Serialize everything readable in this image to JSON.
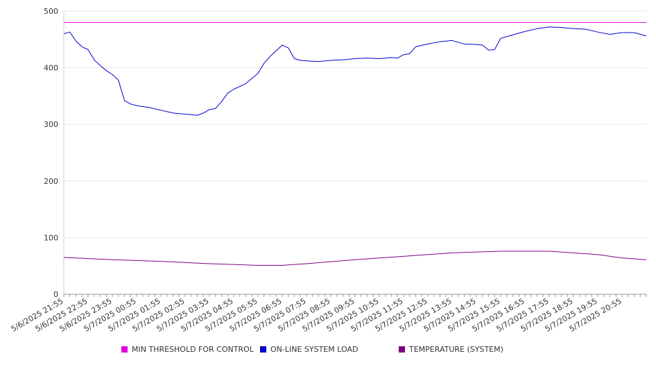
{
  "chart_data": {
    "type": "line",
    "title": "",
    "xlabel": "",
    "ylabel": "",
    "ylim": [
      0,
      500
    ],
    "y_ticks": [
      0,
      100,
      200,
      300,
      400,
      500
    ],
    "grid": "horizontal",
    "legend_position": "bottom",
    "x_tick_labels": [
      "5/6/2025 21:55",
      "5/6/2025 22:55",
      "5/6/2025 23:55",
      "5/7/2025 00:55",
      "5/7/2025 01:55",
      "5/7/2025 02:55",
      "5/7/2025 03:55",
      "5/7/2025 04:55",
      "5/7/2025 05:55",
      "5/7/2025 06:55",
      "5/7/2025 07:55",
      "5/7/2025 08:55",
      "5/7/2025 09:55",
      "5/7/2025 10:55",
      "5/7/2025 11:55",
      "5/7/2025 12:55",
      "5/7/2025 13:55",
      "5/7/2025 14:55",
      "5/7/2025 15:55",
      "5/7/2025 16:55",
      "5/7/2025 17:55",
      "5/7/2025 18:55",
      "5/7/2025 19:55",
      "5/7/2025 20:55"
    ],
    "x_range": [
      "5/6/2025 21:55",
      "5/7/2025 21:55"
    ],
    "series": [
      {
        "name": "MIN THRESHOLD FOR CONTROL",
        "color": "#e000e0",
        "x": [
          "5/6/2025 21:55",
          "5/7/2025 21:55"
        ],
        "values": [
          480,
          480
        ]
      },
      {
        "name": "ON-LINE SYSTEM LOAD",
        "color": "#0000cc",
        "x": [
          "5/6/2025 21:55",
          "5/6/2025 22:10",
          "5/6/2025 22:25",
          "5/6/2025 22:40",
          "5/6/2025 22:55",
          "5/6/2025 23:10",
          "5/6/2025 23:25",
          "5/6/2025 23:40",
          "5/6/2025 23:55",
          "5/7/2025 00:10",
          "5/7/2025 00:25",
          "5/7/2025 00:40",
          "5/7/2025 00:55",
          "5/7/2025 01:25",
          "5/7/2025 01:55",
          "5/7/2025 02:25",
          "5/7/2025 02:55",
          "5/7/2025 03:25",
          "5/7/2025 03:40",
          "5/7/2025 03:55",
          "5/7/2025 04:10",
          "5/7/2025 04:25",
          "5/7/2025 04:40",
          "5/7/2025 04:55",
          "5/7/2025 05:25",
          "5/7/2025 05:55",
          "5/7/2025 06:10",
          "5/7/2025 06:25",
          "5/7/2025 06:40",
          "5/7/2025 06:55",
          "5/7/2025 07:10",
          "5/7/2025 07:25",
          "5/7/2025 07:40",
          "5/7/2025 07:55",
          "5/7/2025 08:25",
          "5/7/2025 08:55",
          "5/7/2025 09:25",
          "5/7/2025 09:55",
          "5/7/2025 10:25",
          "5/7/2025 10:55",
          "5/7/2025 11:25",
          "5/7/2025 11:40",
          "5/7/2025 11:55",
          "5/7/2025 12:10",
          "5/7/2025 12:25",
          "5/7/2025 12:55",
          "5/7/2025 13:25",
          "5/7/2025 13:55",
          "5/7/2025 14:25",
          "5/7/2025 14:55",
          "5/7/2025 15:10",
          "5/7/2025 15:25",
          "5/7/2025 15:40",
          "5/7/2025 15:55",
          "5/7/2025 16:25",
          "5/7/2025 16:55",
          "5/7/2025 17:25",
          "5/7/2025 17:55",
          "5/7/2025 18:25",
          "5/7/2025 18:55",
          "5/7/2025 19:25",
          "5/7/2025 19:55",
          "5/7/2025 20:25",
          "5/7/2025 20:55",
          "5/7/2025 21:25",
          "5/7/2025 21:55"
        ],
        "values": [
          460,
          463,
          447,
          437,
          432,
          414,
          404,
          395,
          388,
          378,
          342,
          336,
          333,
          330,
          325,
          320,
          318,
          316,
          320,
          326,
          328,
          340,
          355,
          362,
          372,
          390,
          408,
          420,
          430,
          440,
          435,
          416,
          413,
          412,
          411,
          413,
          414,
          416,
          417,
          416,
          418,
          417,
          423,
          425,
          437,
          442,
          446,
          448,
          442,
          441,
          440,
          431,
          432,
          452,
          458,
          464,
          469,
          472,
          471,
          469,
          468,
          463,
          459,
          462,
          462,
          456
        ]
      },
      {
        "name": "TEMPERATURE (SYSTEM)",
        "color": "#800080",
        "x": [
          "5/6/2025 21:55",
          "5/6/2025 23:55",
          "5/7/2025 01:55",
          "5/7/2025 03:55",
          "5/7/2025 05:55",
          "5/7/2025 06:55",
          "5/7/2025 07:55",
          "5/7/2025 09:55",
          "5/7/2025 11:55",
          "5/7/2025 13:55",
          "5/7/2025 15:55",
          "5/7/2025 17:55",
          "5/7/2025 19:55",
          "5/7/2025 20:55",
          "5/7/2025 21:55"
        ],
        "values": [
          65,
          61,
          58,
          54,
          51,
          51,
          54,
          61,
          67,
          73,
          76,
          76,
          70,
          64,
          61
        ]
      }
    ]
  },
  "legend": {
    "threshold_label": "MIN THRESHOLD FOR CONTROL",
    "load_label": "ON-LINE SYSTEM LOAD",
    "temperature_label": "TEMPERATURE (SYSTEM)"
  }
}
